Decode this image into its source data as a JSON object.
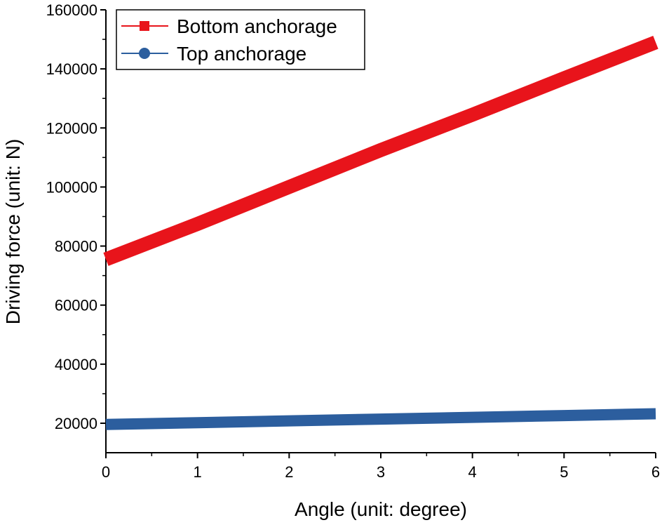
{
  "chart_data": {
    "type": "line",
    "title": "",
    "xlabel": "Angle (unit: degree)",
    "ylabel": "Driving force (unit: N)",
    "xlim": [
      0,
      6
    ],
    "ylim": [
      0,
      160000
    ],
    "x_ticks": [
      0,
      1,
      2,
      3,
      4,
      5,
      6
    ],
    "y_ticks": [
      20000,
      40000,
      60000,
      80000,
      100000,
      120000,
      140000,
      160000
    ],
    "x_tick_labels": [
      "0",
      "1",
      "2",
      "3",
      "4",
      "5",
      "6"
    ],
    "y_tick_labels": [
      "20000",
      "40000",
      "60000",
      "80000",
      "100000",
      "120000",
      "140000",
      "160000"
    ],
    "grid": false,
    "legend_position": "top-left",
    "series": [
      {
        "name": "Bottom anchorage",
        "color": "#e8141b",
        "marker": "square",
        "x": [
          0,
          1,
          2,
          3,
          4,
          5,
          6
        ],
        "values": [
          75500,
          87500,
          100000,
          112500,
          124500,
          136800,
          149000
        ]
      },
      {
        "name": "Top anchorage",
        "color": "#2c5e9e",
        "marker": "circle",
        "x": [
          0,
          1,
          2,
          3,
          4,
          5,
          6
        ],
        "values": [
          19600,
          20200,
          20800,
          21400,
          22000,
          22600,
          23200
        ]
      }
    ]
  }
}
